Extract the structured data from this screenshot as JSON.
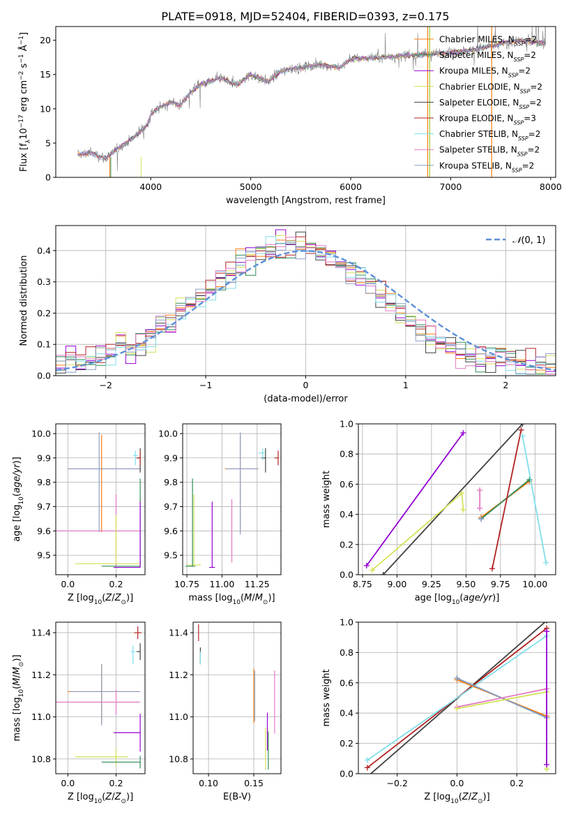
{
  "figure_title": "PLATE=0918, MJD=52404, FIBERID=0393, z=0.175",
  "palette": [
    "#ff7f0e",
    "#2e8b57",
    "#9400d3",
    "#d4e157",
    "#404040",
    "#b22222",
    "#80deea",
    "#e377c2",
    "#8b9dc3"
  ],
  "chart_data": [
    {
      "id": "spectrum",
      "type": "line",
      "title": "PLATE=0918, MJD=52404, FIBERID=0393, z=0.175",
      "xlabel": "wavelength [Angstrom, rest frame]",
      "ylabel": "Flux [f_λ 10^-17 erg cm^-2 s^-1 Å^-1]",
      "xlim": [
        3050,
        8050
      ],
      "ylim": [
        0,
        22
      ],
      "xticks": [
        4000,
        5000,
        6000,
        7000,
        8000
      ],
      "yticks": [
        0,
        5,
        10,
        15,
        20
      ],
      "grid": false,
      "legend_position": "top-right",
      "observed_color": "#808080",
      "continuum_points": [
        [
          3270,
          3.3
        ],
        [
          3400,
          3.6
        ],
        [
          3550,
          2.8
        ],
        [
          3600,
          3.4
        ],
        [
          3700,
          4.5
        ],
        [
          3800,
          5.5
        ],
        [
          3900,
          6.8
        ],
        [
          3970,
          7.8
        ],
        [
          4000,
          9.2
        ],
        [
          4100,
          10.3
        ],
        [
          4200,
          11.0
        ],
        [
          4300,
          10.5
        ],
        [
          4400,
          12.5
        ],
        [
          4500,
          13.5
        ],
        [
          4700,
          14.5
        ],
        [
          4860,
          13.5
        ],
        [
          5000,
          15.0
        ],
        [
          5175,
          14.0
        ],
        [
          5300,
          15.5
        ],
        [
          5500,
          16.0
        ],
        [
          5700,
          16.5
        ],
        [
          5890,
          16.0
        ],
        [
          6000,
          17.3
        ],
        [
          6300,
          17.5
        ],
        [
          6563,
          17.8
        ],
        [
          6800,
          18.0
        ],
        [
          7200,
          18.5
        ],
        [
          7500,
          19.5
        ],
        [
          7700,
          20.0
        ],
        [
          7950,
          19.5
        ]
      ],
      "series": [
        {
          "name": "Chabrier MILES, N_SSP=2"
        },
        {
          "name": "Salpeter MILES, N_SSP=2"
        },
        {
          "name": "Kroupa MILES, N_SSP=2"
        },
        {
          "name": "Chabrier ELODIE, N_SSP=2"
        },
        {
          "name": "Salpeter ELODIE, N_SSP=2"
        },
        {
          "name": "Kroupa ELODIE, N_SSP=3"
        },
        {
          "name": "Chabrier STELIB, N_SSP=2"
        },
        {
          "name": "Salpeter STELIB, N_SSP=2"
        },
        {
          "name": "Kroupa STELIB, N_SSP=2"
        }
      ],
      "vertical_lines": [
        {
          "x": 6770,
          "color": "#ff7f0e"
        },
        {
          "x": 6790,
          "color": "#9acd32"
        },
        {
          "x": 7410,
          "color": "#ff7f0e"
        }
      ]
    },
    {
      "id": "residuals",
      "type": "histogram",
      "xlabel": "(data-model)/error",
      "ylabel": "Normed distribution",
      "xlim": [
        -2.5,
        2.5
      ],
      "ylim": [
        0,
        0.48
      ],
      "xticks": [
        -2,
        -1,
        0,
        1,
        2
      ],
      "yticks": [
        0.0,
        0.1,
        0.2,
        0.3,
        0.4
      ],
      "grid": true,
      "legend_position": "top-right",
      "reference_curve": {
        "label": "N(0,1)",
        "mean": 0,
        "sigma": 1,
        "color": "#5b8fd9"
      }
    },
    {
      "id": "age_vs_Z",
      "type": "errorbar",
      "xlabel": "Z [log10(Z/Z⊙)]",
      "ylabel": "age [log10(age/yr)]",
      "xlim": [
        -0.05,
        0.32
      ],
      "ylim": [
        9.42,
        10.04
      ],
      "xticks": [
        0.0,
        0.2
      ],
      "yticks": [
        9.5,
        9.6,
        9.7,
        9.8,
        9.9,
        10.0
      ],
      "grid": true,
      "points": [
        {
          "s": 0,
          "x": 0.14,
          "y": 9.855,
          "xerr": [
            0.14,
            0.16
          ],
          "yerr": [
            0.26,
            0.14
          ]
        },
        {
          "s": 8,
          "x": 0.13,
          "y": 9.855,
          "xerr": [
            0.13,
            0.17
          ],
          "yerr": [
            0.26,
            0.15
          ]
        },
        {
          "s": 7,
          "x": 0.2,
          "y": 9.6,
          "xerr": [
            0.25,
            0.1
          ],
          "yerr": [
            0.15,
            0.15
          ]
        },
        {
          "s": 3,
          "x": 0.2,
          "y": 9.465,
          "xerr": [
            0.17,
            0.1
          ],
          "yerr": [
            0.0,
            0.2
          ]
        },
        {
          "s": 1,
          "x": 0.3,
          "y": 9.455,
          "xerr": [
            0.16,
            0.0
          ],
          "yerr": [
            0.0,
            0.36
          ]
        },
        {
          "s": 2,
          "x": 0.3,
          "y": 9.45,
          "xerr": [
            0.11,
            0.0
          ],
          "yerr": [
            0.0,
            0.27
          ]
        },
        {
          "s": 4,
          "x": 0.3,
          "y": 9.9,
          "xerr": [
            0.01,
            0.0
          ],
          "yerr": [
            0.06,
            0.04
          ]
        },
        {
          "s": 5,
          "x": 0.3,
          "y": 9.9,
          "xerr": [
            0.015,
            0.0
          ],
          "yerr": [
            0.03,
            0.03
          ]
        },
        {
          "s": 6,
          "x": 0.28,
          "y": 9.91,
          "xerr": [
            0.01,
            0.01
          ],
          "yerr": [
            0.04,
            0.02
          ]
        }
      ]
    },
    {
      "id": "age_vs_mass",
      "type": "errorbar",
      "xlabel": "mass [log10(M/M⊙)]",
      "ylabel": "",
      "xlim": [
        10.72,
        11.42
      ],
      "ylim": [
        9.42,
        10.04
      ],
      "xticks": [
        10.75,
        11.0,
        11.25
      ],
      "yticks": [
        9.5,
        9.6,
        9.7,
        9.8,
        9.9,
        10.0
      ],
      "grid": true,
      "points": [
        {
          "s": 0,
          "x": 11.13,
          "y": 9.855,
          "xerr": [
            0.11,
            0.12
          ],
          "yerr": [
            0.26,
            0.14
          ]
        },
        {
          "s": 8,
          "x": 11.13,
          "y": 9.855,
          "xerr": [
            0.1,
            0.13
          ],
          "yerr": [
            0.27,
            0.15
          ]
        },
        {
          "s": 7,
          "x": 11.07,
          "y": 9.6,
          "xerr": [
            0.0,
            0.0
          ],
          "yerr": [
            0.13,
            0.13
          ]
        },
        {
          "s": 3,
          "x": 10.8,
          "y": 9.46,
          "xerr": [
            0.05,
            0.05
          ],
          "yerr": [
            0.0,
            0.29
          ]
        },
        {
          "s": 1,
          "x": 10.79,
          "y": 9.455,
          "xerr": [
            0.05,
            0.02
          ],
          "yerr": [
            0.0,
            0.36
          ]
        },
        {
          "s": 2,
          "x": 10.93,
          "y": 9.45,
          "xerr": [
            0.02,
            0.02
          ],
          "yerr": [
            0.0,
            0.27
          ]
        },
        {
          "s": 4,
          "x": 11.31,
          "y": 9.9,
          "xerr": [
            0.03,
            0.0
          ],
          "yerr": [
            0.06,
            0.04
          ]
        },
        {
          "s": 5,
          "x": 11.4,
          "y": 9.9,
          "xerr": [
            0.025,
            0.0
          ],
          "yerr": [
            0.03,
            0.03
          ]
        },
        {
          "s": 6,
          "x": 11.29,
          "y": 9.92,
          "xerr": [
            0.03,
            0.02
          ],
          "yerr": [
            0.03,
            0.02
          ]
        }
      ]
    },
    {
      "id": "massweight_vs_age",
      "type": "line",
      "xlabel": "age [log10(age/yr)]",
      "ylabel": "mass weight",
      "xlim": [
        8.72,
        10.15
      ],
      "ylim": [
        0,
        1
      ],
      "xticks": [
        8.75,
        9.0,
        9.25,
        9.5,
        9.75,
        10.0
      ],
      "yticks": [
        0.0,
        0.2,
        0.4,
        0.6,
        0.8,
        1.0
      ],
      "grid": true,
      "lines": [
        {
          "s": 2,
          "points": [
            [
              8.78,
              0.06
            ],
            [
              9.48,
              0.94
            ]
          ]
        },
        {
          "s": 4,
          "points": [
            [
              8.9,
              0.0
            ],
            [
              9.91,
              1.0
            ]
          ]
        },
        {
          "s": 3,
          "points": [
            [
              8.82,
              0.03
            ],
            [
              9.47,
              0.54
            ],
            [
              9.48,
              0.43
            ]
          ]
        },
        {
          "s": 0,
          "points": [
            [
              9.61,
              0.38
            ],
            [
              9.96,
              0.62
            ]
          ]
        },
        {
          "s": 1,
          "points": [
            [
              9.61,
              0.37
            ],
            [
              9.96,
              0.63
            ]
          ]
        },
        {
          "s": 5,
          "points": [
            [
              9.69,
              0.04
            ],
            [
              9.9,
              0.96
            ]
          ]
        },
        {
          "s": 6,
          "points": [
            [
              9.91,
              0.92
            ],
            [
              10.08,
              0.08
            ]
          ]
        },
        {
          "s": 7,
          "points": [
            [
              9.6,
              0.44
            ],
            [
              9.6,
              0.56
            ]
          ]
        },
        {
          "s": 8,
          "points": [
            [
              9.61,
              0.37
            ],
            [
              9.61,
              0.37
            ]
          ]
        }
      ]
    },
    {
      "id": "mass_vs_Z",
      "type": "errorbar",
      "xlabel": "Z [log10(Z/Z⊙)]",
      "ylabel": "mass [log10(M/M⊙)]",
      "xlim": [
        -0.05,
        0.32
      ],
      "ylim": [
        10.73,
        11.45
      ],
      "xticks": [
        0.0,
        0.2
      ],
      "yticks": [
        10.8,
        11.0,
        11.2,
        11.4
      ],
      "grid": true,
      "points": [
        {
          "s": 0,
          "x": 0.14,
          "y": 11.12,
          "xerr": [
            0.14,
            0.16
          ],
          "yerr": [
            0.15,
            0.13
          ]
        },
        {
          "s": 8,
          "x": 0.14,
          "y": 11.12,
          "xerr": [
            0.13,
            0.16
          ],
          "yerr": [
            0.16,
            0.13
          ]
        },
        {
          "s": 7,
          "x": 0.2,
          "y": 11.07,
          "xerr": [
            0.25,
            0.1
          ],
          "yerr": [
            0.06,
            0.06
          ]
        },
        {
          "s": 3,
          "x": 0.2,
          "y": 10.81,
          "xerr": [
            0.17,
            0.05
          ],
          "yerr": [
            0.04,
            0.04
          ]
        },
        {
          "s": 1,
          "x": 0.3,
          "y": 10.785,
          "xerr": [
            0.16,
            0.0
          ],
          "yerr": [
            0.03,
            0.03
          ]
        },
        {
          "s": 2,
          "x": 0.3,
          "y": 10.925,
          "xerr": [
            0.11,
            0.0
          ],
          "yerr": [
            0.09,
            0.09
          ]
        },
        {
          "s": 4,
          "x": 0.3,
          "y": 11.31,
          "xerr": [
            0.015,
            0.0
          ],
          "yerr": [
            0.04,
            0.04
          ]
        },
        {
          "s": 5,
          "x": 0.29,
          "y": 11.4,
          "xerr": [
            0.015,
            0.015
          ],
          "yerr": [
            0.03,
            0.03
          ]
        },
        {
          "s": 6,
          "x": 0.27,
          "y": 11.31,
          "xerr": [
            0.01,
            0.01
          ],
          "yerr": [
            0.06,
            0.03
          ]
        }
      ]
    },
    {
      "id": "mass_vs_EBV",
      "type": "errorbar",
      "xlabel": "E(B-V)",
      "ylabel": "",
      "xlim": [
        0.083,
        0.18
      ],
      "ylim": [
        10.73,
        11.45
      ],
      "xticks": [
        0.1,
        0.15
      ],
      "yticks": [
        10.8,
        11.0,
        11.2,
        11.4
      ],
      "grid": true,
      "points": [
        {
          "s": 5,
          "x": 0.089,
          "y": 11.4,
          "xerr": [
            0,
            0
          ],
          "yerr": [
            0.04,
            0.04
          ]
        },
        {
          "s": 4,
          "x": 0.091,
          "y": 11.29,
          "xerr": [
            0,
            0
          ],
          "yerr": [
            0.04,
            0.04
          ]
        },
        {
          "s": 6,
          "x": 0.091,
          "y": 11.28,
          "xerr": [
            0,
            0
          ],
          "yerr": [
            0.03,
            0.03
          ]
        },
        {
          "s": 0,
          "x": 0.15,
          "y": 11.1,
          "xerr": [
            0,
            0
          ],
          "yerr": [
            0.13,
            0.13
          ]
        },
        {
          "s": 8,
          "x": 0.151,
          "y": 11.1,
          "xerr": [
            0,
            0
          ],
          "yerr": [
            0.12,
            0.12
          ]
        },
        {
          "s": 2,
          "x": 0.165,
          "y": 10.93,
          "xerr": [
            0,
            0
          ],
          "yerr": [
            0.09,
            0.09
          ]
        },
        {
          "s": 3,
          "x": 0.163,
          "y": 10.85,
          "xerr": [
            0,
            0
          ],
          "yerr": [
            0.1,
            0.1
          ]
        },
        {
          "s": 1,
          "x": 0.166,
          "y": 10.84,
          "xerr": [
            0,
            0
          ],
          "yerr": [
            0.09,
            0.09
          ]
        },
        {
          "s": 7,
          "x": 0.173,
          "y": 11.07,
          "xerr": [
            0,
            0
          ],
          "yerr": [
            0.15,
            0.15
          ]
        }
      ]
    },
    {
      "id": "massweight_vs_Z",
      "type": "line",
      "xlabel": "Z [log10(Z/Z⊙)]",
      "ylabel": "mass weight",
      "xlim": [
        -0.33,
        0.33
      ],
      "ylim": [
        0,
        1
      ],
      "xticks": [
        -0.2,
        0.0,
        0.2
      ],
      "yticks": [
        0.0,
        0.2,
        0.4,
        0.6,
        0.8,
        1.0
      ],
      "grid": true,
      "lines": [
        {
          "s": 4,
          "points": [
            [
              -0.3,
              -0.02
            ],
            [
              0.3,
              1.01
            ]
          ]
        },
        {
          "s": 5,
          "points": [
            [
              -0.3,
              0.04
            ],
            [
              0.3,
              0.96
            ]
          ]
        },
        {
          "s": 6,
          "points": [
            [
              -0.3,
              0.09
            ],
            [
              0.3,
              0.91
            ]
          ]
        },
        {
          "s": 0,
          "points": [
            [
              0.0,
              0.62
            ],
            [
              0.3,
              0.38
            ]
          ]
        },
        {
          "s": 1,
          "points": [
            [
              0.0,
              0.63
            ],
            [
              0.3,
              0.37
            ]
          ]
        },
        {
          "s": 8,
          "points": [
            [
              0.0,
              0.63
            ],
            [
              0.3,
              0.37
            ]
          ]
        },
        {
          "s": 7,
          "points": [
            [
              0.0,
              0.44
            ],
            [
              0.3,
              0.56
            ]
          ]
        },
        {
          "s": 3,
          "points": [
            [
              0.0,
              0.43
            ],
            [
              0.3,
              0.54
            ],
            [
              0.3,
              0.03
            ]
          ]
        },
        {
          "s": 2,
          "points": [
            [
              0.3,
              0.06
            ],
            [
              0.3,
              0.94
            ]
          ]
        }
      ]
    }
  ]
}
